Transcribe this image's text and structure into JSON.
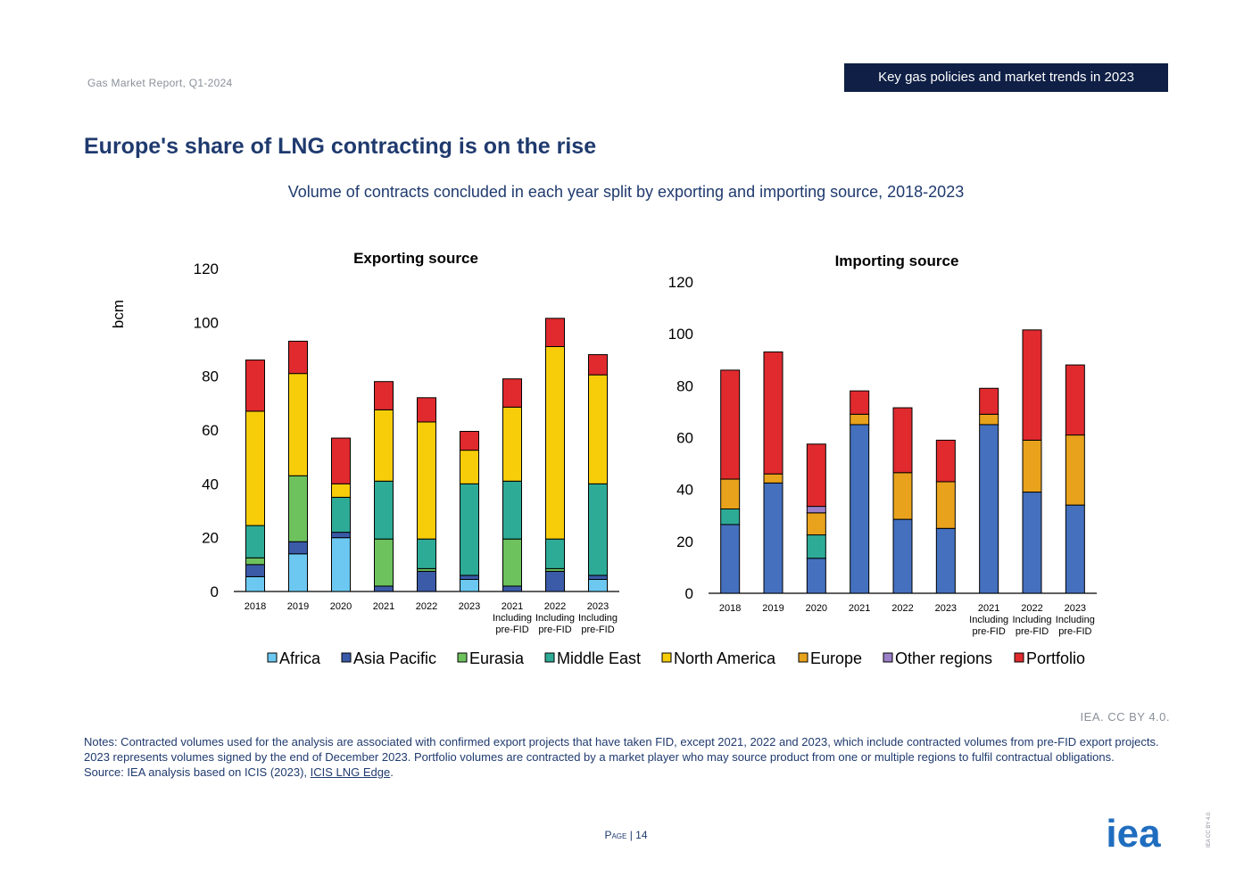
{
  "header": {
    "report_name": "Gas Market Report, Q1-2024",
    "section_badge": "Key gas policies and market trends in 2023"
  },
  "page_title": "Europe's share of LNG contracting is on the rise",
  "chart_subtitle": "Volume of contracts concluded in each year split by exporting and importing source, 2018-2023",
  "chart_data": [
    {
      "type": "bar",
      "stacked": true,
      "title": "Exporting source",
      "ylabel": "bcm",
      "ylim": [
        0,
        120
      ],
      "yticks": [
        0,
        20,
        40,
        60,
        80,
        100,
        120
      ],
      "categories": [
        "2018",
        "2019",
        "2020",
        "2021",
        "2022",
        "2023",
        "2021 Including pre-FID",
        "2022 Including pre-FID",
        "2023 Including pre-FID"
      ],
      "series": [
        {
          "name": "Africa",
          "color": "#6cc8f0",
          "values": [
            5.5,
            14,
            20,
            0,
            0,
            4.5,
            0,
            0,
            4.5
          ]
        },
        {
          "name": "Asia Pacific",
          "color": "#3b5ba8",
          "values": [
            4.5,
            4.5,
            2,
            2,
            7.5,
            1.5,
            2,
            7.5,
            1.5
          ]
        },
        {
          "name": "Eurasia",
          "color": "#6dc25e",
          "values": [
            2.5,
            24.5,
            0,
            17.5,
            1,
            0,
            17.5,
            1,
            0
          ]
        },
        {
          "name": "Middle East",
          "color": "#2eab96",
          "values": [
            12,
            0,
            13,
            21.5,
            11,
            34,
            21.5,
            11,
            34
          ]
        },
        {
          "name": "North America",
          "color": "#f7cd0a",
          "values": [
            42.5,
            38,
            5,
            26.5,
            43.5,
            12.5,
            27.5,
            71.5,
            40.5
          ]
        },
        {
          "name": "Europe",
          "color": "#e8a21b",
          "values": [
            0,
            0,
            0,
            0,
            0,
            0,
            0,
            0,
            0
          ]
        },
        {
          "name": "Other regions",
          "color": "#9b7fc8",
          "values": [
            0,
            0,
            0,
            0,
            0,
            0,
            0,
            0,
            0
          ]
        },
        {
          "name": "Portfolio",
          "color": "#e02a2e",
          "values": [
            19,
            12,
            17,
            10.5,
            9,
            7,
            10.5,
            10.5,
            7.5
          ]
        }
      ]
    },
    {
      "type": "bar",
      "stacked": true,
      "title": "Importing source",
      "ylabel": "",
      "ylim": [
        0,
        120
      ],
      "yticks": [
        0,
        20,
        40,
        60,
        80,
        100,
        120
      ],
      "categories": [
        "2018",
        "2019",
        "2020",
        "2021",
        "2022",
        "2023",
        "2021 Including pre-FID",
        "2022 Including pre-FID",
        "2023 Including pre-FID"
      ],
      "series": [
        {
          "name": "Africa",
          "color": "#6cc8f0",
          "values": [
            0,
            0,
            0,
            0,
            0,
            0,
            0,
            0,
            0
          ]
        },
        {
          "name": "Asia Pacific",
          "color": "#4470be",
          "values": [
            26.5,
            42.5,
            13.5,
            65,
            28.5,
            25,
            65,
            39,
            34
          ]
        },
        {
          "name": "Eurasia",
          "color": "#6dc25e",
          "values": [
            0,
            0,
            0,
            0,
            0,
            0,
            0,
            0,
            0
          ]
        },
        {
          "name": "Middle East",
          "color": "#2eab96",
          "values": [
            6,
            0,
            9,
            0,
            0,
            0,
            0,
            0,
            0
          ]
        },
        {
          "name": "North America",
          "color": "#f7cd0a",
          "values": [
            0,
            0,
            0,
            0,
            0,
            0,
            0,
            0,
            0
          ]
        },
        {
          "name": "Europe",
          "color": "#e8a21b",
          "values": [
            11.5,
            3.5,
            8.5,
            4,
            18,
            18,
            4,
            20,
            27
          ]
        },
        {
          "name": "Other regions",
          "color": "#9b7fc8",
          "values": [
            0,
            0,
            2.5,
            0,
            0,
            0,
            0,
            0,
            0
          ]
        },
        {
          "name": "Portfolio",
          "color": "#e02a2e",
          "values": [
            42,
            47,
            24,
            9,
            25,
            16,
            10,
            42.5,
            27
          ]
        }
      ]
    }
  ],
  "legend": [
    "Africa",
    "Asia Pacific",
    "Eurasia",
    "Middle East",
    "North America",
    "Europe",
    "Other regions",
    "Portfolio"
  ],
  "legend_colors": [
    "#6cc8f0",
    "#3b5ba8",
    "#6dc25e",
    "#2eab96",
    "#f7cd0a",
    "#e8a21b",
    "#9b7fc8",
    "#e02a2e"
  ],
  "credit": "IEA. CC BY 4.0.",
  "notes": {
    "text": "Notes: Contracted volumes used for the analysis are associated with confirmed export projects that have taken FID, except 2021, 2022 and 2023, which include contracted volumes from pre-FID export projects. 2023 represents volumes signed by the end of December 2023. Portfolio volumes are contracted by a market player who may source product from one or multiple regions to fulfil contractual obligations.",
    "source_prefix": "Source: IEA analysis based on ICIS (2023), ",
    "source_link": "ICIS LNG Edge",
    "source_suffix": "."
  },
  "footer": {
    "page_label": "Page",
    "page_number": "14",
    "logo_text": "iea",
    "license": "IEA CC BY 4.0."
  }
}
